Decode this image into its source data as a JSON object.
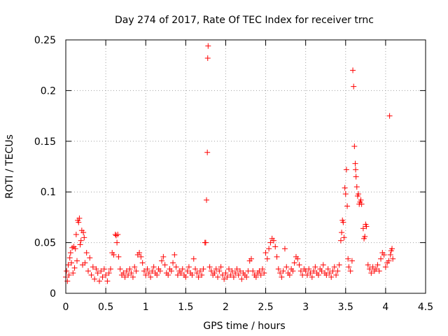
{
  "chart_data": {
    "type": "scatter",
    "title": "Day 274 of 2017, Rate Of TEC Index for receiver trnc",
    "xlabel": "GPS time / hours",
    "ylabel": "ROTI / TECUs",
    "xlim": [
      0,
      4.5
    ],
    "ylim": [
      0,
      0.25
    ],
    "x_ticks": [
      0,
      0.5,
      1,
      1.5,
      2,
      2.5,
      3,
      3.5,
      4,
      4.5
    ],
    "x_tick_labels": [
      "0",
      "0.5",
      "1",
      "1.5",
      "2",
      "2.5",
      "3",
      "3.5",
      "4",
      "4.5"
    ],
    "y_ticks": [
      0,
      0.05,
      0.1,
      0.15,
      0.2,
      0.25
    ],
    "y_tick_labels": [
      "0",
      "0.05",
      "0.1",
      "0.15",
      "0.2",
      "0.25"
    ],
    "grid": true,
    "marker": "+",
    "marker_color": "#ff0000",
    "series": [
      {
        "name": "ROTI",
        "points": [
          [
            0.0,
            0.016
          ],
          [
            0.01,
            0.022
          ],
          [
            0.02,
            0.012
          ],
          [
            0.03,
            0.028
          ],
          [
            0.04,
            0.018
          ],
          [
            0.05,
            0.035
          ],
          [
            0.06,
            0.04
          ],
          [
            0.07,
            0.03
          ],
          [
            0.08,
            0.045
          ],
          [
            0.09,
            0.02
          ],
          [
            0.1,
            0.046
          ],
          [
            0.11,
            0.025
          ],
          [
            0.12,
            0.044
          ],
          [
            0.13,
            0.058
          ],
          [
            0.14,
            0.032
          ],
          [
            0.15,
            0.072
          ],
          [
            0.16,
            0.07
          ],
          [
            0.17,
            0.074
          ],
          [
            0.18,
            0.048
          ],
          [
            0.19,
            0.052
          ],
          [
            0.2,
            0.062
          ],
          [
            0.21,
            0.028
          ],
          [
            0.22,
            0.06
          ],
          [
            0.23,
            0.055
          ],
          [
            0.24,
            0.03
          ],
          [
            0.26,
            0.04
          ],
          [
            0.28,
            0.022
          ],
          [
            0.3,
            0.035
          ],
          [
            0.32,
            0.018
          ],
          [
            0.34,
            0.026
          ],
          [
            0.36,
            0.014
          ],
          [
            0.38,
            0.024
          ],
          [
            0.4,
            0.02
          ],
          [
            0.42,
            0.012
          ],
          [
            0.44,
            0.022
          ],
          [
            0.46,
            0.016
          ],
          [
            0.48,
            0.024
          ],
          [
            0.5,
            0.018
          ],
          [
            0.52,
            0.012
          ],
          [
            0.54,
            0.02
          ],
          [
            0.56,
            0.024
          ],
          [
            0.58,
            0.04
          ],
          [
            0.6,
            0.038
          ],
          [
            0.62,
            0.058
          ],
          [
            0.63,
            0.057
          ],
          [
            0.64,
            0.05
          ],
          [
            0.65,
            0.058
          ],
          [
            0.66,
            0.036
          ],
          [
            0.68,
            0.024
          ],
          [
            0.7,
            0.018
          ],
          [
            0.72,
            0.02
          ],
          [
            0.74,
            0.016
          ],
          [
            0.76,
            0.022
          ],
          [
            0.78,
            0.018
          ],
          [
            0.8,
            0.024
          ],
          [
            0.82,
            0.02
          ],
          [
            0.84,
            0.016
          ],
          [
            0.86,
            0.026
          ],
          [
            0.88,
            0.022
          ],
          [
            0.9,
            0.038
          ],
          [
            0.92,
            0.04
          ],
          [
            0.94,
            0.036
          ],
          [
            0.96,
            0.03
          ],
          [
            0.98,
            0.022
          ],
          [
            1.0,
            0.018
          ],
          [
            1.02,
            0.024
          ],
          [
            1.04,
            0.02
          ],
          [
            1.06,
            0.016
          ],
          [
            1.08,
            0.022
          ],
          [
            1.1,
            0.026
          ],
          [
            1.12,
            0.02
          ],
          [
            1.14,
            0.018
          ],
          [
            1.16,
            0.024
          ],
          [
            1.18,
            0.022
          ],
          [
            1.2,
            0.032
          ],
          [
            1.22,
            0.036
          ],
          [
            1.24,
            0.028
          ],
          [
            1.26,
            0.02
          ],
          [
            1.28,
            0.018
          ],
          [
            1.3,
            0.024
          ],
          [
            1.32,
            0.022
          ],
          [
            1.34,
            0.03
          ],
          [
            1.36,
            0.038
          ],
          [
            1.38,
            0.026
          ],
          [
            1.4,
            0.018
          ],
          [
            1.42,
            0.022
          ],
          [
            1.44,
            0.02
          ],
          [
            1.46,
            0.024
          ],
          [
            1.48,
            0.018
          ],
          [
            1.5,
            0.016
          ],
          [
            1.52,
            0.022
          ],
          [
            1.54,
            0.026
          ],
          [
            1.56,
            0.02
          ],
          [
            1.58,
            0.018
          ],
          [
            1.6,
            0.034
          ],
          [
            1.62,
            0.024
          ],
          [
            1.64,
            0.02
          ],
          [
            1.66,
            0.016
          ],
          [
            1.68,
            0.022
          ],
          [
            1.7,
            0.018
          ],
          [
            1.72,
            0.024
          ],
          [
            1.74,
            0.05
          ],
          [
            1.75,
            0.05
          ],
          [
            1.76,
            0.092
          ],
          [
            1.77,
            0.139
          ],
          [
            1.775,
            0.232
          ],
          [
            1.78,
            0.244
          ],
          [
            1.8,
            0.026
          ],
          [
            1.82,
            0.022
          ],
          [
            1.84,
            0.018
          ],
          [
            1.86,
            0.02
          ],
          [
            1.88,
            0.024
          ],
          [
            1.9,
            0.016
          ],
          [
            1.92,
            0.022
          ],
          [
            1.94,
            0.026
          ],
          [
            1.96,
            0.018
          ],
          [
            1.98,
            0.014
          ],
          [
            2.0,
            0.02
          ],
          [
            2.02,
            0.016
          ],
          [
            2.04,
            0.024
          ],
          [
            2.06,
            0.018
          ],
          [
            2.08,
            0.022
          ],
          [
            2.1,
            0.016
          ],
          [
            2.12,
            0.02
          ],
          [
            2.14,
            0.024
          ],
          [
            2.16,
            0.018
          ],
          [
            2.18,
            0.022
          ],
          [
            2.2,
            0.014
          ],
          [
            2.22,
            0.02
          ],
          [
            2.24,
            0.018
          ],
          [
            2.26,
            0.016
          ],
          [
            2.28,
            0.022
          ],
          [
            2.3,
            0.032
          ],
          [
            2.32,
            0.034
          ],
          [
            2.34,
            0.022
          ],
          [
            2.36,
            0.018
          ],
          [
            2.38,
            0.016
          ],
          [
            2.4,
            0.02
          ],
          [
            2.42,
            0.022
          ],
          [
            2.44,
            0.018
          ],
          [
            2.46,
            0.024
          ],
          [
            2.48,
            0.02
          ],
          [
            2.5,
            0.04
          ],
          [
            2.52,
            0.034
          ],
          [
            2.54,
            0.044
          ],
          [
            2.56,
            0.05
          ],
          [
            2.58,
            0.054
          ],
          [
            2.6,
            0.052
          ],
          [
            2.62,
            0.046
          ],
          [
            2.64,
            0.036
          ],
          [
            2.66,
            0.024
          ],
          [
            2.68,
            0.02
          ],
          [
            2.7,
            0.016
          ],
          [
            2.72,
            0.022
          ],
          [
            2.74,
            0.044
          ],
          [
            2.76,
            0.026
          ],
          [
            2.78,
            0.02
          ],
          [
            2.8,
            0.018
          ],
          [
            2.82,
            0.024
          ],
          [
            2.84,
            0.022
          ],
          [
            2.86,
            0.03
          ],
          [
            2.88,
            0.036
          ],
          [
            2.9,
            0.034
          ],
          [
            2.92,
            0.028
          ],
          [
            2.94,
            0.022
          ],
          [
            2.96,
            0.018
          ],
          [
            2.98,
            0.024
          ],
          [
            3.0,
            0.022
          ],
          [
            3.02,
            0.018
          ],
          [
            3.04,
            0.024
          ],
          [
            3.06,
            0.02
          ],
          [
            3.08,
            0.016
          ],
          [
            3.1,
            0.022
          ],
          [
            3.12,
            0.026
          ],
          [
            3.14,
            0.02
          ],
          [
            3.16,
            0.018
          ],
          [
            3.18,
            0.024
          ],
          [
            3.2,
            0.022
          ],
          [
            3.22,
            0.028
          ],
          [
            3.24,
            0.02
          ],
          [
            3.26,
            0.018
          ],
          [
            3.28,
            0.024
          ],
          [
            3.3,
            0.02
          ],
          [
            3.32,
            0.016
          ],
          [
            3.34,
            0.022
          ],
          [
            3.36,
            0.026
          ],
          [
            3.38,
            0.018
          ],
          [
            3.4,
            0.022
          ],
          [
            3.42,
            0.028
          ],
          [
            3.44,
            0.052
          ],
          [
            3.45,
            0.06
          ],
          [
            3.46,
            0.072
          ],
          [
            3.47,
            0.07
          ],
          [
            3.48,
            0.055
          ],
          [
            3.49,
            0.104
          ],
          [
            3.5,
            0.098
          ],
          [
            3.51,
            0.122
          ],
          [
            3.52,
            0.086
          ],
          [
            3.53,
            0.034
          ],
          [
            3.54,
            0.026
          ],
          [
            3.56,
            0.022
          ],
          [
            3.58,
            0.032
          ],
          [
            3.59,
            0.22
          ],
          [
            3.6,
            0.204
          ],
          [
            3.61,
            0.145
          ],
          [
            3.62,
            0.128
          ],
          [
            3.625,
            0.122
          ],
          [
            3.63,
            0.115
          ],
          [
            3.64,
            0.105
          ],
          [
            3.65,
            0.096
          ],
          [
            3.66,
            0.098
          ],
          [
            3.67,
            0.088
          ],
          [
            3.68,
            0.09
          ],
          [
            3.69,
            0.092
          ],
          [
            3.7,
            0.088
          ],
          [
            3.72,
            0.064
          ],
          [
            3.73,
            0.054
          ],
          [
            3.74,
            0.056
          ],
          [
            3.75,
            0.068
          ],
          [
            3.76,
            0.066
          ],
          [
            3.78,
            0.028
          ],
          [
            3.8,
            0.024
          ],
          [
            3.82,
            0.02
          ],
          [
            3.84,
            0.026
          ],
          [
            3.86,
            0.022
          ],
          [
            3.88,
            0.024
          ],
          [
            3.9,
            0.028
          ],
          [
            3.92,
            0.022
          ],
          [
            3.94,
            0.034
          ],
          [
            3.96,
            0.04
          ],
          [
            3.98,
            0.038
          ],
          [
            4.0,
            0.026
          ],
          [
            4.02,
            0.03
          ],
          [
            4.04,
            0.032
          ],
          [
            4.05,
            0.175
          ],
          [
            4.06,
            0.038
          ],
          [
            4.07,
            0.042
          ],
          [
            4.08,
            0.044
          ],
          [
            4.09,
            0.034
          ]
        ]
      }
    ]
  }
}
